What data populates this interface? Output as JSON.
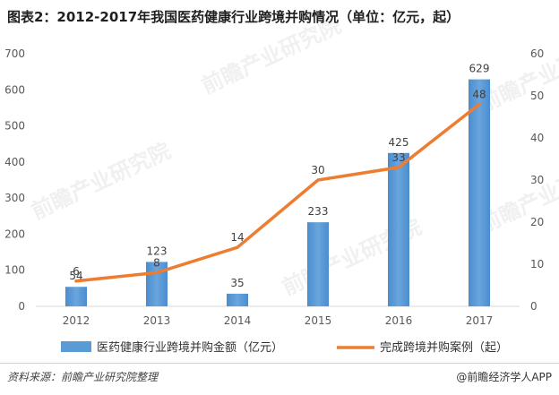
{
  "title": "图表2：2012-2017年我国医药健康行业跨境并购情况（单位：亿元，起）",
  "source": "资料来源：前瞻产业研究院整理",
  "brand": "@前瞻经济学人APP",
  "watermark": "前瞻产业研究院",
  "colors": {
    "bar": "#5b9bd5",
    "line": "#ed7d31",
    "axis": "#d9d9d9",
    "text": "#595959"
  },
  "chart_data": {
    "type": "bar",
    "categories": [
      "2012",
      "2013",
      "2014",
      "2015",
      "2016",
      "2017"
    ],
    "series": [
      {
        "name": "医药健康行业跨境并购金额（亿元）",
        "type": "bar",
        "axis": "left",
        "values": [
          54,
          123,
          35,
          233,
          425,
          629
        ]
      },
      {
        "name": "完成跨境并购案例（起）",
        "type": "line",
        "axis": "right",
        "values": [
          6,
          8,
          14,
          30,
          33,
          48
        ]
      }
    ],
    "left_axis": {
      "ylim": [
        0,
        700
      ],
      "ticks": [
        0,
        100,
        200,
        300,
        400,
        500,
        600,
        700
      ]
    },
    "right_axis": {
      "ylim": [
        0,
        60
      ],
      "ticks": [
        0,
        10,
        20,
        30,
        40,
        50,
        60
      ]
    },
    "legend": "bottom"
  }
}
